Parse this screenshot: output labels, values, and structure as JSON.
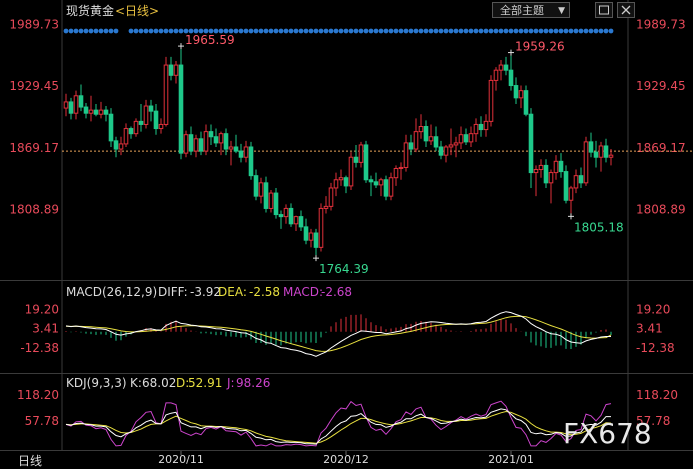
{
  "header": {
    "title": "现货黄金",
    "period": "<日线>",
    "theme_button": "全部主题",
    "theme_arrow": "▼",
    "expand_icon": "expand-icon",
    "close_icon": "close-icon"
  },
  "bottom_tab": "日线",
  "watermark": "FX678",
  "colors": {
    "background": "#000000",
    "up": "#e0303a",
    "down": "#1ec98a",
    "axis_label": "#e84a5a",
    "price_line": "#e8a25a",
    "diff": "#ffffff",
    "dea": "#e8e040",
    "macd_label": "#cc44cc",
    "k": "#ffffff",
    "d": "#e8e040",
    "j": "#cc44cc",
    "dots": "#2a78d0"
  },
  "chart_data": [
    {
      "type": "candlestick",
      "name": "现货黄金 日线",
      "y_ticks": [
        1989.73,
        1929.45,
        1869.17,
        1808.89
      ],
      "ylim": [
        1745,
        1994
      ],
      "current_price_line": 1866,
      "x_ticks": [
        {
          "label": "2020/11",
          "index": 23
        },
        {
          "label": "2020/12",
          "index": 56
        },
        {
          "label": "2021/01",
          "index": 89
        }
      ],
      "annotations": [
        {
          "text": "1965.59",
          "index": 23,
          "value": 1965.59,
          "kind": "high"
        },
        {
          "text": "1764.39",
          "index": 50,
          "value": 1764.39,
          "kind": "low"
        },
        {
          "text": "1959.26",
          "index": 89,
          "value": 1959.26,
          "kind": "high"
        },
        {
          "text": "1805.18",
          "index": 101,
          "value": 1805.18,
          "kind": "low"
        }
      ],
      "candles": [
        [
          1908,
          1922,
          1900,
          1914
        ],
        [
          1914,
          1918,
          1897,
          1903
        ],
        [
          1903,
          1925,
          1897,
          1920
        ],
        [
          1920,
          1931,
          1905,
          1909
        ],
        [
          1909,
          1913,
          1898,
          1903
        ],
        [
          1903,
          1920,
          1895,
          1906
        ],
        [
          1906,
          1912,
          1900,
          1902
        ],
        [
          1902,
          1914,
          1898,
          1906
        ],
        [
          1906,
          1910,
          1895,
          1902
        ],
        [
          1902,
          1908,
          1870,
          1876
        ],
        [
          1876,
          1880,
          1860,
          1868
        ],
        [
          1868,
          1880,
          1862,
          1873
        ],
        [
          1873,
          1893,
          1870,
          1888
        ],
        [
          1888,
          1890,
          1878,
          1883
        ],
        [
          1883,
          1898,
          1880,
          1895
        ],
        [
          1895,
          1912,
          1885,
          1892
        ],
        [
          1892,
          1916,
          1888,
          1910
        ],
        [
          1910,
          1916,
          1895,
          1905
        ],
        [
          1905,
          1912,
          1882,
          1888
        ],
        [
          1888,
          1898,
          1883,
          1892
        ],
        [
          1892,
          1958,
          1890,
          1950
        ],
        [
          1950,
          1958,
          1935,
          1940
        ],
        [
          1940,
          1954,
          1932,
          1950
        ],
        [
          1950,
          1965.59,
          1858,
          1864
        ],
        [
          1864,
          1886,
          1860,
          1882
        ],
        [
          1882,
          1890,
          1862,
          1866
        ],
        [
          1866,
          1882,
          1860,
          1878
        ],
        [
          1878,
          1885,
          1862,
          1866
        ],
        [
          1866,
          1892,
          1862,
          1885
        ],
        [
          1885,
          1892,
          1872,
          1880
        ],
        [
          1880,
          1888,
          1870,
          1874
        ],
        [
          1874,
          1885,
          1862,
          1883
        ],
        [
          1883,
          1888,
          1862,
          1868
        ],
        [
          1868,
          1876,
          1852,
          1870
        ],
        [
          1870,
          1882,
          1864,
          1866
        ],
        [
          1866,
          1873,
          1855,
          1860
        ],
        [
          1860,
          1876,
          1855,
          1870
        ],
        [
          1870,
          1875,
          1838,
          1842
        ],
        [
          1842,
          1848,
          1818,
          1822
        ],
        [
          1822,
          1840,
          1815,
          1835
        ],
        [
          1835,
          1841,
          1806,
          1810
        ],
        [
          1810,
          1828,
          1806,
          1825
        ],
        [
          1825,
          1830,
          1800,
          1804
        ],
        [
          1804,
          1808,
          1790,
          1802
        ],
        [
          1802,
          1814,
          1795,
          1810
        ],
        [
          1810,
          1815,
          1792,
          1795
        ],
        [
          1795,
          1803,
          1788,
          1802
        ],
        [
          1802,
          1808,
          1788,
          1792
        ],
        [
          1792,
          1800,
          1775,
          1779
        ],
        [
          1779,
          1790,
          1772,
          1786
        ],
        [
          1786,
          1790,
          1764.39,
          1772
        ],
        [
          1772,
          1815,
          1768,
          1810
        ],
        [
          1810,
          1822,
          1805,
          1812
        ],
        [
          1812,
          1835,
          1808,
          1830
        ],
        [
          1830,
          1845,
          1822,
          1838
        ],
        [
          1838,
          1848,
          1832,
          1840
        ],
        [
          1840,
          1842,
          1825,
          1832
        ],
        [
          1832,
          1865,
          1828,
          1860
        ],
        [
          1860,
          1872,
          1850,
          1855
        ],
        [
          1855,
          1875,
          1850,
          1872
        ],
        [
          1872,
          1876,
          1835,
          1838
        ],
        [
          1838,
          1842,
          1822,
          1836
        ],
        [
          1836,
          1845,
          1830,
          1833
        ],
        [
          1833,
          1840,
          1822,
          1838
        ],
        [
          1838,
          1842,
          1818,
          1822
        ],
        [
          1822,
          1845,
          1818,
          1840
        ],
        [
          1840,
          1852,
          1832,
          1849
        ],
        [
          1849,
          1855,
          1838,
          1850
        ],
        [
          1850,
          1882,
          1846,
          1874
        ],
        [
          1874,
          1882,
          1862,
          1868
        ],
        [
          1868,
          1898,
          1865,
          1885
        ],
        [
          1885,
          1902,
          1878,
          1890
        ],
        [
          1890,
          1896,
          1870,
          1876
        ],
        [
          1876,
          1892,
          1872,
          1880
        ],
        [
          1880,
          1890,
          1866,
          1870
        ],
        [
          1870,
          1876,
          1858,
          1862
        ],
        [
          1862,
          1872,
          1855,
          1870
        ],
        [
          1870,
          1888,
          1862,
          1872
        ],
        [
          1872,
          1880,
          1860,
          1874
        ],
        [
          1874,
          1890,
          1868,
          1882
        ],
        [
          1882,
          1888,
          1872,
          1875
        ],
        [
          1875,
          1890,
          1870,
          1883
        ],
        [
          1883,
          1898,
          1875,
          1892
        ],
        [
          1892,
          1900,
          1880,
          1887
        ],
        [
          1887,
          1902,
          1880,
          1895
        ],
        [
          1895,
          1940,
          1890,
          1935
        ],
        [
          1935,
          1948,
          1925,
          1945
        ],
        [
          1945,
          1955,
          1935,
          1950
        ],
        [
          1950,
          1958,
          1940,
          1945
        ],
        [
          1945,
          1959.26,
          1925,
          1930
        ],
        [
          1930,
          1938,
          1912,
          1918
        ],
        [
          1918,
          1930,
          1908,
          1925
        ],
        [
          1925,
          1930,
          1900,
          1902
        ],
        [
          1902,
          1908,
          1830,
          1845
        ],
        [
          1845,
          1852,
          1822,
          1848
        ],
        [
          1848,
          1858,
          1840,
          1852
        ],
        [
          1852,
          1858,
          1830,
          1835
        ],
        [
          1835,
          1848,
          1815,
          1845
        ],
        [
          1845,
          1862,
          1838,
          1856
        ],
        [
          1856,
          1864,
          1840,
          1846
        ],
        [
          1846,
          1852,
          1815,
          1818
        ],
        [
          1818,
          1832,
          1805.18,
          1830
        ],
        [
          1830,
          1848,
          1825,
          1842
        ],
        [
          1842,
          1850,
          1830,
          1835
        ],
        [
          1835,
          1880,
          1832,
          1875
        ],
        [
          1875,
          1884,
          1860,
          1865
        ],
        [
          1865,
          1876,
          1850,
          1860
        ],
        [
          1860,
          1875,
          1846,
          1871
        ],
        [
          1871,
          1878,
          1855,
          1860
        ],
        [
          1860,
          1868,
          1852,
          1862
        ]
      ]
    },
    {
      "type": "macd",
      "title": "MACD(26,12,9)",
      "diff_label": "DIFF:",
      "diff_value": "-3.92",
      "dea_label": "DEA:",
      "dea_value": "-2.58",
      "macd_label": "MACD:",
      "macd_value": "-2.68",
      "y_ticks": [
        19.2,
        3.41,
        -12.38
      ],
      "ylim": [
        -33,
        26
      ],
      "diff": [
        4.8,
        4.2,
        4.7,
        4.1,
        3.4,
        3,
        2.4,
        2.3,
        1.8,
        0,
        -2.1,
        -2.8,
        -1.8,
        -1.2,
        0.1,
        0.8,
        1.9,
        2.3,
        1.5,
        1.3,
        5.1,
        7,
        8.6,
        6.8,
        6.3,
        5.4,
        5,
        4,
        3.9,
        3.2,
        2.5,
        2.3,
        1.3,
        0.7,
        0.1,
        -0.8,
        -1.1,
        -2.9,
        -5.5,
        -6.7,
        -8.9,
        -9.5,
        -11.4,
        -13,
        -13.4,
        -14.6,
        -15.2,
        -16.2,
        -17.9,
        -18.7,
        -20.1,
        -18.3,
        -16.5,
        -13.3,
        -10.6,
        -7.9,
        -5.5,
        -3,
        -1.3,
        0.7,
        0.4,
        -0.1,
        -0.6,
        -0.6,
        -1.6,
        -1,
        -0.1,
        0.7,
        2.6,
        3.5,
        5.4,
        6.8,
        7.5,
        8.1,
        8,
        7.6,
        6.9,
        6.5,
        6.2,
        6.4,
        6.2,
        6.6,
        7.5,
        7.8,
        8.4,
        11.1,
        13.3,
        15.3,
        16.4,
        15.7,
        14.1,
        12.8,
        10.4,
        6.7,
        4.1,
        2.2,
        0,
        -1.6,
        -2.1,
        -3.4,
        -6.5,
        -8.4,
        -9.1,
        -9.5,
        -7.5,
        -6.3,
        -5.5,
        -4.3,
        -3.9,
        -3.92
      ],
      "dea": [
        4.5,
        4.4,
        4.5,
        4.4,
        4.2,
        4,
        3.7,
        3.4,
        3.1,
        2.5,
        1.6,
        0.7,
        0.2,
        -0.1,
        -0.1,
        0.1,
        0.4,
        0.8,
        1,
        1.1,
        1.9,
        2.9,
        4,
        4.5,
        4.8,
        4.9,
        4.9,
        4.7,
        4.5,
        4.2,
        3.9,
        3.6,
        3.2,
        2.7,
        2.2,
        1.6,
        1.1,
        0.3,
        -0.9,
        -2.1,
        -3.5,
        -4.7,
        -6,
        -7.4,
        -8.6,
        -9.8,
        -10.9,
        -12,
        -13.2,
        -14.3,
        -15.5,
        -16,
        -16.1,
        -15.5,
        -14.5,
        -13.2,
        -11.6,
        -9.9,
        -8.2,
        -6.4,
        -5.1,
        -4,
        -3.3,
        -2.8,
        -2.6,
        -2.3,
        -1.8,
        -1.3,
        -0.5,
        0.3,
        1.3,
        2.4,
        3.4,
        4.4,
        5.1,
        5.6,
        5.9,
        6,
        6.1,
        6.2,
        6.2,
        6.3,
        6.5,
        6.8,
        7.1,
        7.9,
        9,
        10.3,
        11.5,
        12.3,
        12.6,
        12.7,
        12.2,
        11.1,
        9.7,
        8.2,
        6.6,
        5,
        3.6,
        2.2,
        0.5,
        -1.3,
        -2.9,
        -4.2,
        -4.8,
        -5.1,
        -5.2,
        -5,
        -4.8,
        -2.58
      ]
    },
    {
      "type": "kdj",
      "title": "KDJ(9,3,3)",
      "k_label": "K:",
      "k_value": "68.02",
      "d_label": "D:",
      "d_value": "52.91",
      "j_label": "J:",
      "j_value": "98.26",
      "y_ticks": [
        118.2,
        57.78
      ],
      "ylim": [
        -5,
        130
      ],
      "k": [
        50,
        48,
        52,
        53,
        50,
        49,
        46,
        46,
        44,
        33,
        24,
        21,
        28,
        32,
        42,
        48,
        56,
        60,
        52,
        51,
        72,
        76,
        78,
        54,
        49,
        44,
        44,
        40,
        44,
        45,
        43,
        45,
        41,
        40,
        39,
        35,
        36,
        29,
        20,
        18,
        14,
        15,
        10,
        8,
        9,
        8,
        8,
        7,
        5,
        5,
        4,
        16,
        23,
        34,
        45,
        54,
        58,
        69,
        70,
        75,
        65,
        55,
        50,
        49,
        43,
        46,
        52,
        55,
        63,
        63,
        70,
        74,
        66,
        64,
        58,
        52,
        53,
        56,
        58,
        62,
        60,
        63,
        66,
        65,
        67,
        78,
        82,
        86,
        84,
        74,
        63,
        59,
        50,
        31,
        28,
        30,
        26,
        27,
        31,
        29,
        22,
        23,
        30,
        32,
        48,
        50,
        48,
        55,
        68,
        68.02
      ],
      "d": [
        50,
        49,
        50,
        51,
        51,
        50,
        49,
        48,
        47,
        42,
        36,
        31,
        30,
        31,
        35,
        39,
        45,
        50,
        51,
        51,
        58,
        64,
        69,
        64,
        59,
        54,
        51,
        47,
        46,
        46,
        45,
        45,
        44,
        43,
        42,
        40,
        38,
        35,
        30,
        26,
        22,
        20,
        17,
        14,
        12,
        11,
        10,
        9,
        8,
        7,
        6,
        9,
        14,
        21,
        29,
        37,
        44,
        52,
        58,
        64,
        64,
        61,
        57,
        54,
        51,
        49,
        50,
        52,
        55,
        58,
        62,
        66,
        66,
        65,
        63,
        59,
        57,
        57,
        57,
        59,
        59,
        60,
        62,
        63,
        64,
        69,
        73,
        77,
        80,
        78,
        73,
        68,
        62,
        52,
        44,
        39,
        35,
        32,
        32,
        31,
        28,
        26,
        27,
        29,
        35,
        40,
        43,
        47,
        54,
        52.91
      ],
      "j": [
        50,
        46,
        56,
        57,
        48,
        47,
        40,
        42,
        38,
        15,
        0,
        1,
        24,
        34,
        56,
        66,
        78,
        80,
        54,
        51,
        100,
        100,
        96,
        34,
        29,
        24,
        30,
        26,
        40,
        43,
        39,
        45,
        35,
        34,
        33,
        25,
        32,
        17,
        0,
        2,
        0,
        5,
        0,
        0,
        3,
        2,
        4,
        3,
        0,
        1,
        0,
        30,
        41,
        60,
        77,
        88,
        86,
        103,
        94,
        97,
        67,
        43,
        36,
        39,
        27,
        40,
        56,
        61,
        79,
        73,
        86,
        90,
        66,
        62,
        48,
        38,
        45,
        54,
        60,
        68,
        62,
        69,
        74,
        69,
        73,
        96,
        100,
        104,
        92,
        66,
        43,
        41,
        26,
        0,
        0,
        12,
        8,
        17,
        29,
        25,
        10,
        17,
        36,
        38,
        74,
        70,
        58,
        71,
        96,
        98.26
      ]
    }
  ]
}
